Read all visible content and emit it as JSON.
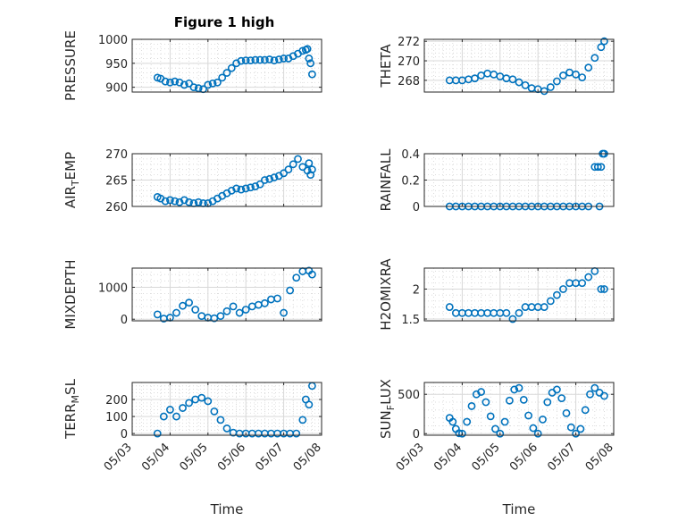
{
  "figure": {
    "title": "Figure 1 high"
  },
  "colors": {
    "series": "#0072BD",
    "axis": "#262626",
    "grid": "#d9d9d9",
    "background": "#ffffff"
  },
  "chart_data": [
    {
      "id": "pressure",
      "type": "scatter",
      "title": "Figure 1 high",
      "ylabel": "PRESSURE",
      "ylabel_sub": "",
      "xlabel": "",
      "ylim": [
        890,
        1000
      ],
      "yticks": [
        900,
        950,
        1000
      ],
      "grid": true,
      "x": [
        "05/03 16:00",
        "05/03 18:00",
        "05/03 21:00",
        "05/04 00:00",
        "05/04 03:00",
        "05/04 06:00",
        "05/04 09:00",
        "05/04 12:00",
        "05/04 15:00",
        "05/04 18:00",
        "05/04 21:00",
        "05/05 00:00",
        "05/05 03:00",
        "05/05 06:00",
        "05/05 09:00",
        "05/05 12:00",
        "05/05 15:00",
        "05/05 18:00",
        "05/05 21:00",
        "05/06 00:00",
        "05/06 03:00",
        "05/06 06:00",
        "05/06 09:00",
        "05/06 12:00",
        "05/06 15:00",
        "05/06 18:00",
        "05/06 21:00",
        "05/07 00:00",
        "05/07 03:00",
        "05/07 06:00",
        "05/07 09:00",
        "05/07 12:00",
        "05/07 14:00",
        "05/07 15:00",
        "05/07 16:00",
        "05/07 17:00",
        "05/07 18:00"
      ],
      "y": [
        920,
        918,
        912,
        910,
        912,
        910,
        905,
        908,
        900,
        898,
        896,
        905,
        908,
        910,
        920,
        930,
        940,
        950,
        955,
        956,
        956,
        957,
        957,
        957,
        958,
        956,
        958,
        960,
        960,
        965,
        970,
        976,
        978,
        980,
        960,
        950,
        927
      ]
    },
    {
      "id": "theta",
      "type": "scatter",
      "title": "",
      "ylabel": "THETA",
      "ylabel_sub": "",
      "xlabel": "",
      "ylim": [
        266.8,
        272.2
      ],
      "yticks": [
        268,
        270,
        272
      ],
      "grid": true,
      "x": [
        "05/03 16:00",
        "05/03 20:00",
        "05/04 00:00",
        "05/04 04:00",
        "05/04 08:00",
        "05/04 12:00",
        "05/04 16:00",
        "05/04 20:00",
        "05/05 00:00",
        "05/05 04:00",
        "05/05 08:00",
        "05/05 12:00",
        "05/05 16:00",
        "05/05 20:00",
        "05/06 00:00",
        "05/06 04:00",
        "05/06 08:00",
        "05/06 12:00",
        "05/06 16:00",
        "05/06 20:00",
        "05/07 00:00",
        "05/07 04:00",
        "05/07 08:00",
        "05/07 12:00",
        "05/07 16:00",
        "05/07 18:00"
      ],
      "y": [
        268.0,
        268.0,
        268.0,
        268.1,
        268.2,
        268.5,
        268.7,
        268.6,
        268.4,
        268.2,
        268.1,
        267.8,
        267.5,
        267.2,
        267.1,
        266.9,
        267.3,
        267.9,
        268.5,
        268.8,
        268.6,
        268.3,
        269.3,
        270.3,
        271.4,
        272.0
      ]
    },
    {
      "id": "air-temp",
      "type": "scatter",
      "title": "",
      "ylabel": "AIR",
      "ylabel_sub": "T",
      "ylabel_suffix": "EMP",
      "xlabel": "",
      "ylim": [
        260,
        270
      ],
      "yticks": [
        260,
        265,
        270
      ],
      "grid": true,
      "x": [
        "05/03 16:00",
        "05/03 18:00",
        "05/03 21:00",
        "05/04 00:00",
        "05/04 03:00",
        "05/04 06:00",
        "05/04 09:00",
        "05/04 12:00",
        "05/04 15:00",
        "05/04 18:00",
        "05/04 21:00",
        "05/05 00:00",
        "05/05 03:00",
        "05/05 06:00",
        "05/05 09:00",
        "05/05 12:00",
        "05/05 15:00",
        "05/05 18:00",
        "05/05 21:00",
        "05/06 00:00",
        "05/06 03:00",
        "05/06 06:00",
        "05/06 09:00",
        "05/06 12:00",
        "05/06 15:00",
        "05/06 18:00",
        "05/06 21:00",
        "05/07 00:00",
        "05/07 03:00",
        "05/07 06:00",
        "05/07 09:00",
        "05/07 12:00",
        "05/07 15:00",
        "05/07 16:00",
        "05/07 17:00",
        "05/07 18:00"
      ],
      "y": [
        261.8,
        261.5,
        261.0,
        261.2,
        261.0,
        260.8,
        261.2,
        260.8,
        260.6,
        260.8,
        260.6,
        260.6,
        261.0,
        261.5,
        262.0,
        262.5,
        263.0,
        263.4,
        263.2,
        263.4,
        263.6,
        263.8,
        264.2,
        265.0,
        265.2,
        265.5,
        265.8,
        266.3,
        267.0,
        268.0,
        269.0,
        267.5,
        266.8,
        268.2,
        266.0,
        267.0
      ]
    },
    {
      "id": "rainfall",
      "type": "scatter",
      "title": "",
      "ylabel": "RAINFALL",
      "ylabel_sub": "",
      "xlabel": "",
      "ylim": [
        0,
        0.4
      ],
      "yticks": [
        0,
        0.2,
        0.4
      ],
      "grid": true,
      "x": [
        "05/03 16:00",
        "05/03 20:00",
        "05/04 00:00",
        "05/04 04:00",
        "05/04 08:00",
        "05/04 12:00",
        "05/04 16:00",
        "05/04 20:00",
        "05/05 00:00",
        "05/05 04:00",
        "05/05 08:00",
        "05/05 12:00",
        "05/05 16:00",
        "05/05 20:00",
        "05/06 00:00",
        "05/06 04:00",
        "05/06 08:00",
        "05/06 12:00",
        "05/06 16:00",
        "05/06 20:00",
        "05/07 00:00",
        "05/07 04:00",
        "05/07 08:00",
        "05/07 12:00",
        "05/07 14:00",
        "05/07 15:00",
        "05/07 16:00",
        "05/07 17:00",
        "05/07 18:00"
      ],
      "y": [
        0,
        0,
        0,
        0,
        0,
        0,
        0,
        0,
        0,
        0,
        0,
        0,
        0,
        0,
        0,
        0,
        0,
        0,
        0,
        0,
        0,
        0,
        0,
        0.3,
        0.3,
        0,
        0.3,
        0.4,
        0.4
      ]
    },
    {
      "id": "mixdepth",
      "type": "scatter",
      "title": "",
      "ylabel": "MIXDEPTH",
      "ylabel_sub": "",
      "xlabel": "",
      "ylim": [
        -50,
        1600
      ],
      "yticks": [
        0,
        1000
      ],
      "grid": true,
      "x": [
        "05/03 16:00",
        "05/03 20:00",
        "05/04 00:00",
        "05/04 04:00",
        "05/04 08:00",
        "05/04 12:00",
        "05/04 16:00",
        "05/04 20:00",
        "05/05 00:00",
        "05/05 04:00",
        "05/05 08:00",
        "05/05 12:00",
        "05/05 16:00",
        "05/05 20:00",
        "05/06 00:00",
        "05/06 04:00",
        "05/06 08:00",
        "05/06 12:00",
        "05/06 16:00",
        "05/06 20:00",
        "05/07 00:00",
        "05/07 04:00",
        "05/07 08:00",
        "05/07 12:00",
        "05/07 16:00",
        "05/07 18:00"
      ],
      "y": [
        150,
        20,
        50,
        200,
        420,
        520,
        300,
        100,
        50,
        30,
        100,
        250,
        400,
        200,
        300,
        400,
        450,
        500,
        620,
        650,
        200,
        900,
        1300,
        1500,
        1520,
        1400
      ]
    },
    {
      "id": "h2omixra",
      "type": "scatter",
      "title": "",
      "ylabel": "H2OMIXRA",
      "ylabel_sub": "",
      "xlabel": "",
      "ylim": [
        1.47,
        2.35
      ],
      "yticks": [
        1.5,
        2
      ],
      "grid": true,
      "x": [
        "05/03 16:00",
        "05/03 20:00",
        "05/04 00:00",
        "05/04 04:00",
        "05/04 08:00",
        "05/04 12:00",
        "05/04 16:00",
        "05/04 20:00",
        "05/05 00:00",
        "05/05 04:00",
        "05/05 08:00",
        "05/05 12:00",
        "05/05 16:00",
        "05/05 20:00",
        "05/06 00:00",
        "05/06 04:00",
        "05/06 08:00",
        "05/06 12:00",
        "05/06 16:00",
        "05/06 20:00",
        "05/07 00:00",
        "05/07 04:00",
        "05/07 08:00",
        "05/07 12:00",
        "05/07 16:00",
        "05/07 18:00"
      ],
      "y": [
        1.7,
        1.6,
        1.6,
        1.6,
        1.6,
        1.6,
        1.6,
        1.6,
        1.6,
        1.6,
        1.5,
        1.6,
        1.7,
        1.7,
        1.7,
        1.7,
        1.8,
        1.9,
        2.0,
        2.1,
        2.1,
        2.1,
        2.2,
        2.3,
        2.0,
        2.0
      ]
    },
    {
      "id": "terr-msl",
      "type": "scatter",
      "title": "",
      "ylabel": "TERR",
      "ylabel_sub": "M",
      "ylabel_suffix": "SL",
      "xlabel": "Time",
      "ylim": [
        -10,
        300
      ],
      "yticks": [
        0,
        100,
        200
      ],
      "grid": true,
      "x_tick_labels": [
        "05/03",
        "05/04",
        "05/05",
        "05/06",
        "05/07",
        "05/08"
      ],
      "x": [
        "05/03 16:00",
        "05/03 20:00",
        "05/04 00:00",
        "05/04 04:00",
        "05/04 08:00",
        "05/04 12:00",
        "05/04 16:00",
        "05/04 20:00",
        "05/05 00:00",
        "05/05 04:00",
        "05/05 08:00",
        "05/05 12:00",
        "05/05 16:00",
        "05/05 20:00",
        "05/06 00:00",
        "05/06 04:00",
        "05/06 08:00",
        "05/06 12:00",
        "05/06 16:00",
        "05/06 20:00",
        "05/07 00:00",
        "05/07 04:00",
        "05/07 08:00",
        "05/07 12:00",
        "05/07 14:00",
        "05/07 16:00",
        "05/07 18:00"
      ],
      "y": [
        0,
        100,
        140,
        100,
        150,
        180,
        200,
        210,
        190,
        130,
        80,
        30,
        5,
        0,
        0,
        0,
        0,
        0,
        0,
        0,
        0,
        0,
        0,
        80,
        200,
        170,
        280
      ]
    },
    {
      "id": "sun-flux",
      "type": "scatter",
      "title": "",
      "ylabel": "SUN",
      "ylabel_sub": "F",
      "ylabel_suffix": "LUX",
      "xlabel": "Time",
      "ylim": [
        -20,
        650
      ],
      "yticks": [
        0,
        500
      ],
      "grid": true,
      "x_tick_labels": [
        "05/03",
        "05/04",
        "05/05",
        "05/06",
        "05/07",
        "05/08"
      ],
      "x": [
        "05/03 16:00",
        "05/03 18:00",
        "05/03 20:00",
        "05/03 22:00",
        "05/04 00:00",
        "05/04 03:00",
        "05/04 06:00",
        "05/04 09:00",
        "05/04 12:00",
        "05/04 15:00",
        "05/04 18:00",
        "05/04 21:00",
        "05/05 00:00",
        "05/05 03:00",
        "05/05 06:00",
        "05/05 09:00",
        "05/05 12:00",
        "05/05 15:00",
        "05/05 18:00",
        "05/05 21:00",
        "05/06 00:00",
        "05/06 03:00",
        "05/06 06:00",
        "05/06 09:00",
        "05/06 12:00",
        "05/06 15:00",
        "05/06 18:00",
        "05/06 21:00",
        "05/07 00:00",
        "05/07 03:00",
        "05/07 06:00",
        "05/07 09:00",
        "05/07 12:00",
        "05/07 15:00",
        "05/07 18:00"
      ],
      "y": [
        200,
        150,
        60,
        5,
        0,
        150,
        350,
        500,
        530,
        400,
        220,
        60,
        0,
        150,
        420,
        560,
        580,
        430,
        230,
        70,
        0,
        180,
        400,
        520,
        560,
        450,
        260,
        80,
        0,
        60,
        300,
        500,
        580,
        520,
        480
      ]
    }
  ]
}
